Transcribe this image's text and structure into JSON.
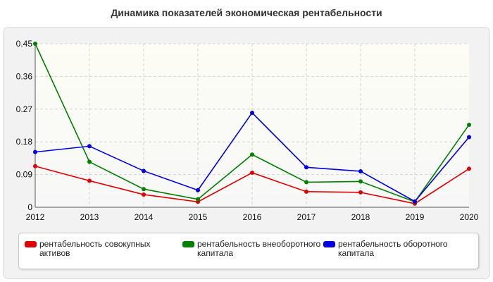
{
  "title": "Динамика показателей экономическая рентабельности",
  "chart_data": {
    "type": "line",
    "x": [
      "2012",
      "2013",
      "2014",
      "2015",
      "2016",
      "2017",
      "2018",
      "2019",
      "2020"
    ],
    "y_ticks": [
      "0",
      "0.09",
      "0.18",
      "0.27",
      "0.36",
      "0.45"
    ],
    "ylim": [
      0,
      0.45
    ],
    "grid": true,
    "legend_position": "bottom",
    "series": [
      {
        "name": "рентабельность совокупных активов",
        "color": "#e00000",
        "values": [
          0.113,
          0.073,
          0.035,
          0.015,
          0.095,
          0.043,
          0.041,
          0.01,
          0.106
        ]
      },
      {
        "name": "рентабельность внеоборотного капитала",
        "color": "#008000",
        "values": [
          0.45,
          0.125,
          0.05,
          0.022,
          0.145,
          0.069,
          0.071,
          0.015,
          0.227
        ]
      },
      {
        "name": "рентабельность оборотного капитала",
        "color": "#0000e0",
        "values": [
          0.152,
          0.168,
          0.1,
          0.047,
          0.26,
          0.11,
          0.099,
          0.016,
          0.193
        ]
      }
    ]
  }
}
